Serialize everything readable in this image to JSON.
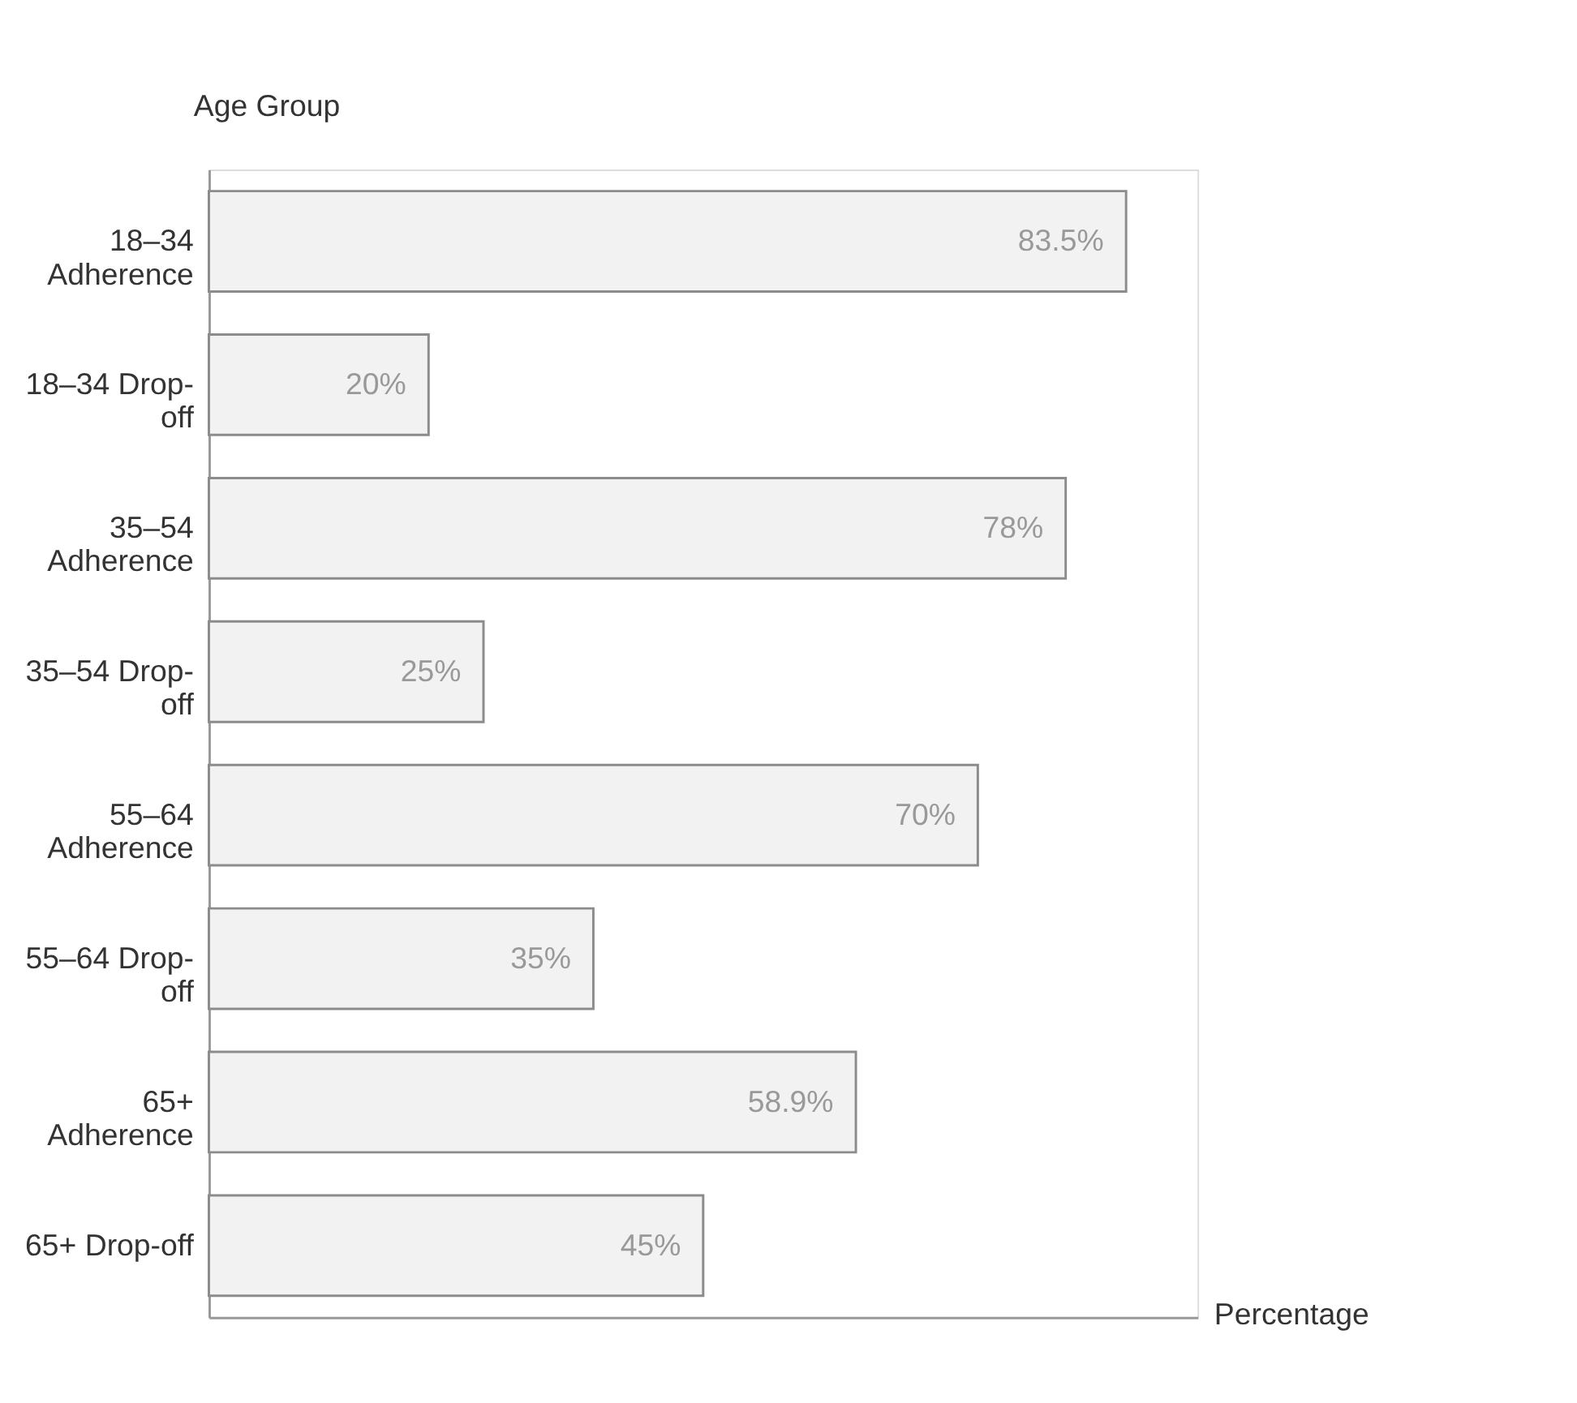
{
  "chart_data": {
    "type": "bar",
    "orientation": "horizontal",
    "xlabel": "Percentage",
    "ylabel": "Age Group",
    "categories": [
      "18–34 Adherence",
      "18–34 Drop-off",
      "35–54 Adherence",
      "35–54 Drop-off",
      "55–64 Adherence",
      "55–64 Drop-off",
      "65+ Adherence",
      "65+ Drop-off"
    ],
    "values": [
      83.5,
      20,
      78,
      25,
      70,
      35,
      58.9,
      45
    ],
    "value_labels": [
      "83.5%",
      "20%",
      "78%",
      "25%",
      "70%",
      "35%",
      "58.9%",
      "45%"
    ],
    "color": "#f2f2f2",
    "tick_labels": "y",
    "grid": false
  }
}
